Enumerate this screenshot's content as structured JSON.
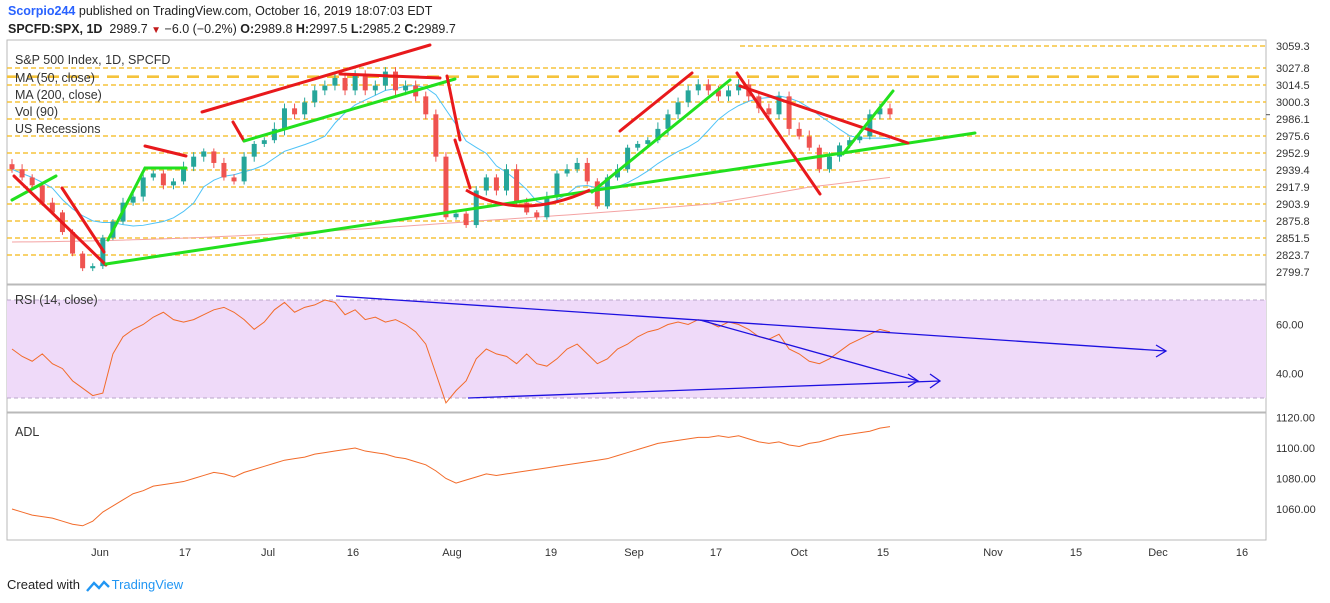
{
  "header": {
    "author": "Scorpio244",
    "published": " published on TradingView.com, October 16, 2019 18:07:03 EDT",
    "symbol": "SPCFD:SPX, 1D",
    "last": "2989.7",
    "change": "−6.0 (−0.2%)",
    "o_label": "O:",
    "o_value": "2989.8",
    "h_label": "H:",
    "h_value": "2997.5",
    "l_label": "L:",
    "l_value": "2985.2",
    "c_label": "C:",
    "c_value": "2989.7"
  },
  "legend": {
    "title": "S&P 500 Index, 1D, SPCFD",
    "items": [
      "MA (50, close)",
      "MA (200, close)",
      "Vol (90)",
      "US Recessions"
    ]
  },
  "colors": {
    "support_line": "#22e01e",
    "resistance_line": "#e8191c",
    "level_line": "#f5c33b",
    "ma50": "#4fc3f7",
    "ma200": "#f4a3a3",
    "candle_up": "#26a69a",
    "candle_down": "#ef5350",
    "rsi_line": "#f26b2a",
    "rsi_band": "#efdaf9",
    "rsi_trend": "#1d10e0",
    "adl_line": "#f26b2a"
  },
  "footer": {
    "created_with": "Created with",
    "brand": "TradingView"
  },
  "chart_data": [
    {
      "type": "line",
      "name": "price",
      "title": "S&P 500 Index, 1D, SPCFD",
      "y_tick_labels": [
        "3059.3",
        "3027.8",
        "3014.5",
        "3000.3",
        "2986.1",
        "2975.6",
        "2952.9",
        "2939.4",
        "2917.9",
        "2903.9",
        "2875.8",
        "2851.5",
        "2823.7",
        "2799.7"
      ],
      "horizontal_levels": [
        3059.3,
        3027.8,
        3014.5,
        3000.3,
        2986.1,
        2975.6,
        2952.9,
        2939.4,
        2917.9,
        2903.9,
        2875.8,
        2851.5,
        2823.7
      ],
      "x_tick_labels": [
        "Jun",
        "17",
        "Jul",
        "16",
        "Aug",
        "19",
        "Sep",
        "17",
        "Oct",
        "15",
        "Nov",
        "15",
        "Dec",
        "16"
      ],
      "close_series_approx": [
        2940,
        2930,
        2920,
        2905,
        2890,
        2860,
        2826,
        2805,
        2808,
        2852,
        2875,
        2905,
        2910,
        2930,
        2935,
        2920,
        2925,
        2942,
        2950,
        2955,
        2945,
        2930,
        2925,
        2950,
        2965,
        2970,
        2980,
        2995,
        2990,
        3000,
        3010,
        3014,
        3020,
        3010,
        3022,
        3010,
        3014,
        3025,
        3010,
        3014,
        3005,
        2990,
        2950,
        2882,
        2888,
        2870,
        2915,
        2930,
        2915,
        2940,
        2905,
        2890,
        2882,
        2910,
        2935,
        2940,
        2945,
        2925,
        2900,
        2930,
        2940,
        2960,
        2965,
        2970,
        2980,
        2990,
        3000,
        3010,
        3015,
        3010,
        3005,
        3010,
        3015,
        3005,
        2995,
        2990,
        3005,
        2980,
        2975,
        2960,
        2940,
        2950,
        2963,
        2970,
        2975,
        2990,
        2995,
        2990
      ],
      "ma50_approx_start_end": [
        2940,
        2985
      ],
      "ma200_approx_start_end": [
        2845,
        2930
      ]
    },
    {
      "type": "line",
      "name": "RSI",
      "title": "RSI (14, close)",
      "y_tick_labels": [
        "60.00",
        "40.00"
      ],
      "band": [
        30,
        70
      ],
      "values_approx": [
        50,
        47,
        45,
        48,
        44,
        42,
        37,
        34,
        31,
        32,
        48,
        55,
        58,
        60,
        63,
        65,
        62,
        61,
        62,
        64,
        66,
        67,
        65,
        62,
        58,
        61,
        66,
        69,
        65,
        67,
        68,
        70,
        69,
        64,
        66,
        62,
        63,
        61,
        62,
        60,
        57,
        52,
        40,
        28,
        33,
        37,
        46,
        50,
        48,
        47,
        44,
        48,
        44,
        43,
        46,
        50,
        52,
        48,
        44,
        46,
        50,
        52,
        55,
        57,
        58,
        60,
        61,
        60,
        62,
        61,
        59,
        61,
        60,
        58,
        55,
        54,
        56,
        50,
        48,
        45,
        44,
        46,
        49,
        52,
        54,
        56,
        58,
        57
      ]
    },
    {
      "type": "line",
      "name": "ADL",
      "title": "ADL",
      "y_tick_labels": [
        "1120.00",
        "1100.00",
        "1080.00",
        "1060.00"
      ],
      "values_approx": [
        1060,
        1058,
        1056,
        1055,
        1054,
        1052,
        1050,
        1049,
        1052,
        1058,
        1062,
        1066,
        1070,
        1072,
        1075,
        1076,
        1077,
        1078,
        1080,
        1082,
        1084,
        1083,
        1081,
        1084,
        1086,
        1088,
        1090,
        1092,
        1093,
        1094,
        1096,
        1097,
        1098,
        1099,
        1100,
        1098,
        1097,
        1096,
        1094,
        1093,
        1091,
        1089,
        1085,
        1080,
        1077,
        1079,
        1081,
        1083,
        1082,
        1083,
        1084,
        1085,
        1086,
        1087,
        1088,
        1089,
        1090,
        1091,
        1092,
        1093,
        1095,
        1097,
        1099,
        1101,
        1103,
        1104,
        1105,
        1106,
        1107,
        1107,
        1108,
        1107,
        1108,
        1106,
        1104,
        1103,
        1104,
        1102,
        1101,
        1103,
        1104,
        1106,
        1108,
        1109,
        1110,
        1111,
        1113,
        1114
      ]
    }
  ]
}
